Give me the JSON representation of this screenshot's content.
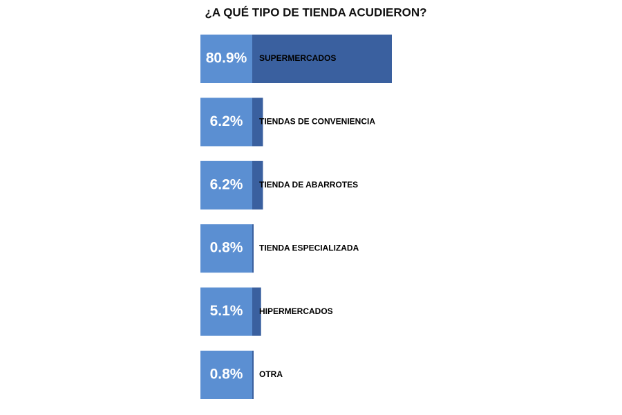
{
  "chart_data": {
    "type": "bar",
    "orientation": "horizontal",
    "title": "¿A QUÉ TIPO DE TIENDA ACUDIERON?",
    "categories": [
      "SUPERMERCADOS",
      "TIENDAS DE CONVENIENCIA",
      "TIENDA DE ABARROTES",
      "TIENDA ESPECIALIZADA",
      "HIPERMERCADOS",
      "OTRA"
    ],
    "values": [
      80.9,
      6.2,
      6.2,
      0.8,
      5.1,
      0.8
    ],
    "value_labels": [
      "80.9%",
      "6.2%",
      "6.2%",
      "0.8%",
      "5.1%",
      "0.8%"
    ],
    "color": "#3a609f",
    "label_box_color": "#5b8fd2"
  }
}
